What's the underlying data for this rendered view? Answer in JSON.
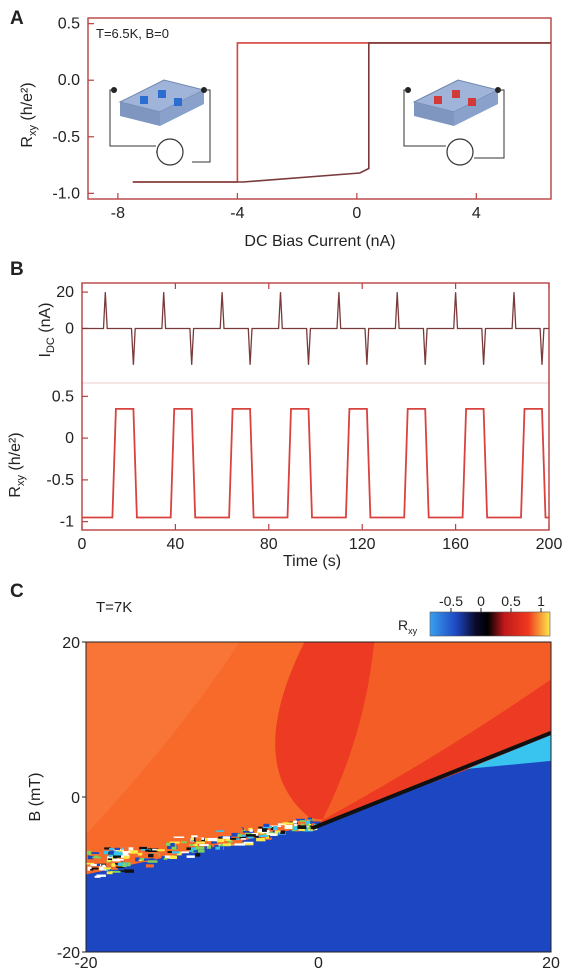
{
  "colors": {
    "trace_red": "#d8433f",
    "trace_dark": "#7a3a3a",
    "frame": "#b84040",
    "map_red": "#ec3b22",
    "map_orange": "#f86a2a",
    "map_blue": "#1d47c2",
    "map_cyan": "#38c4ef",
    "map_black": "#111111"
  },
  "chart_data": [
    {
      "panel": "A",
      "type": "line",
      "annotation": "T=6.5K, B=0",
      "xlabel": "DC Bias Current (nA)",
      "ylabel": "Rxy (h/e²)",
      "ylabel_main": "R",
      "ylabel_sub": "xy",
      "ylabel_unit": " (h/e²)",
      "xlim": [
        -9,
        6.5
      ],
      "ylim": [
        -1.05,
        0.55
      ],
      "xticks": [
        -8,
        -4,
        0,
        4
      ],
      "xtick_labels": [
        "-8",
        "-4",
        "0",
        "4"
      ],
      "yticks": [
        0.5,
        0.0,
        -0.5,
        -1.0
      ],
      "ytick_labels": [
        "0.5",
        "0.0",
        "-0.5",
        "-1.0"
      ],
      "series": [
        {
          "x": [
            -7.5,
            -4,
            -4,
            6.5
          ],
          "y": [
            -0.9,
            -0.9,
            0.33,
            0.33
          ]
        },
        {
          "x": [
            -7.5,
            -3.8,
            0.1,
            0.4,
            0.4,
            6.5
          ],
          "y": [
            -0.9,
            -0.9,
            -0.82,
            -0.78,
            0.33,
            0.33
          ]
        }
      ],
      "insets": [
        "device-schematic-blue",
        "device-schematic-red"
      ]
    },
    {
      "panel": "B",
      "type": "line",
      "xlabel": "Time (s)",
      "xlim": [
        0,
        200
      ],
      "xticks": [
        0,
        40,
        80,
        120,
        160,
        200
      ],
      "xtick_labels": [
        "0",
        "40",
        "80",
        "120",
        "160",
        "200"
      ],
      "top": {
        "ylabel_main": "I",
        "ylabel_sub": "DC",
        "ylabel_unit": " (nA)",
        "ylim": [
          -30,
          25
        ],
        "yticks": [
          20,
          0
        ],
        "ytick_labels": [
          "20",
          "0"
        ],
        "pulse_amplitude": 20,
        "positive_pulse_times": [
          10,
          35,
          60,
          85,
          110,
          135,
          160,
          185
        ],
        "negative_pulse_times": [
          22,
          47,
          72,
          97,
          122,
          147,
          172,
          197
        ]
      },
      "bottom": {
        "ylabel_main": "R",
        "ylabel_sub": "xy",
        "ylabel_unit": " (h/e²)",
        "ylim": [
          -1.1,
          0.6
        ],
        "yticks": [
          0.5,
          0,
          -0.5,
          -1
        ],
        "ytick_labels": [
          "0.5",
          "0",
          "-0.5",
          "-1"
        ],
        "high_value": 0.35,
        "low_value": -0.95,
        "high_intervals": [
          [
            13,
            22
          ],
          [
            38,
            47
          ],
          [
            63,
            72
          ],
          [
            88,
            97
          ],
          [
            113,
            122
          ],
          [
            138,
            147
          ],
          [
            163,
            172
          ],
          [
            188,
            197
          ]
        ]
      }
    },
    {
      "panel": "C",
      "type": "heatmap",
      "annotation": "T=7K",
      "ylabel": "B (mT)",
      "ylim": [
        -20,
        20
      ],
      "yticks": [
        20,
        0,
        -20
      ],
      "ytick_labels": [
        "20",
        "0",
        "-20"
      ],
      "xlim": [
        -20,
        20
      ],
      "xtick_labels": [
        "-20",
        "0",
        "20"
      ],
      "colorbar_label": "Rxy",
      "colorbar_main": "R",
      "colorbar_sub": "xy",
      "colorbar_ticks": [
        "-0.5",
        "0",
        "0.5",
        "1"
      ],
      "colorbar_values": [
        -0.5,
        0,
        0.5,
        1
      ],
      "colorbar_range": [
        -0.85,
        1.15
      ],
      "boundary": {
        "left_x": -20,
        "left_B": -10,
        "center_x": 0,
        "center_B": -3.5,
        "right_x": 20,
        "right_B": 7.5
      }
    }
  ]
}
